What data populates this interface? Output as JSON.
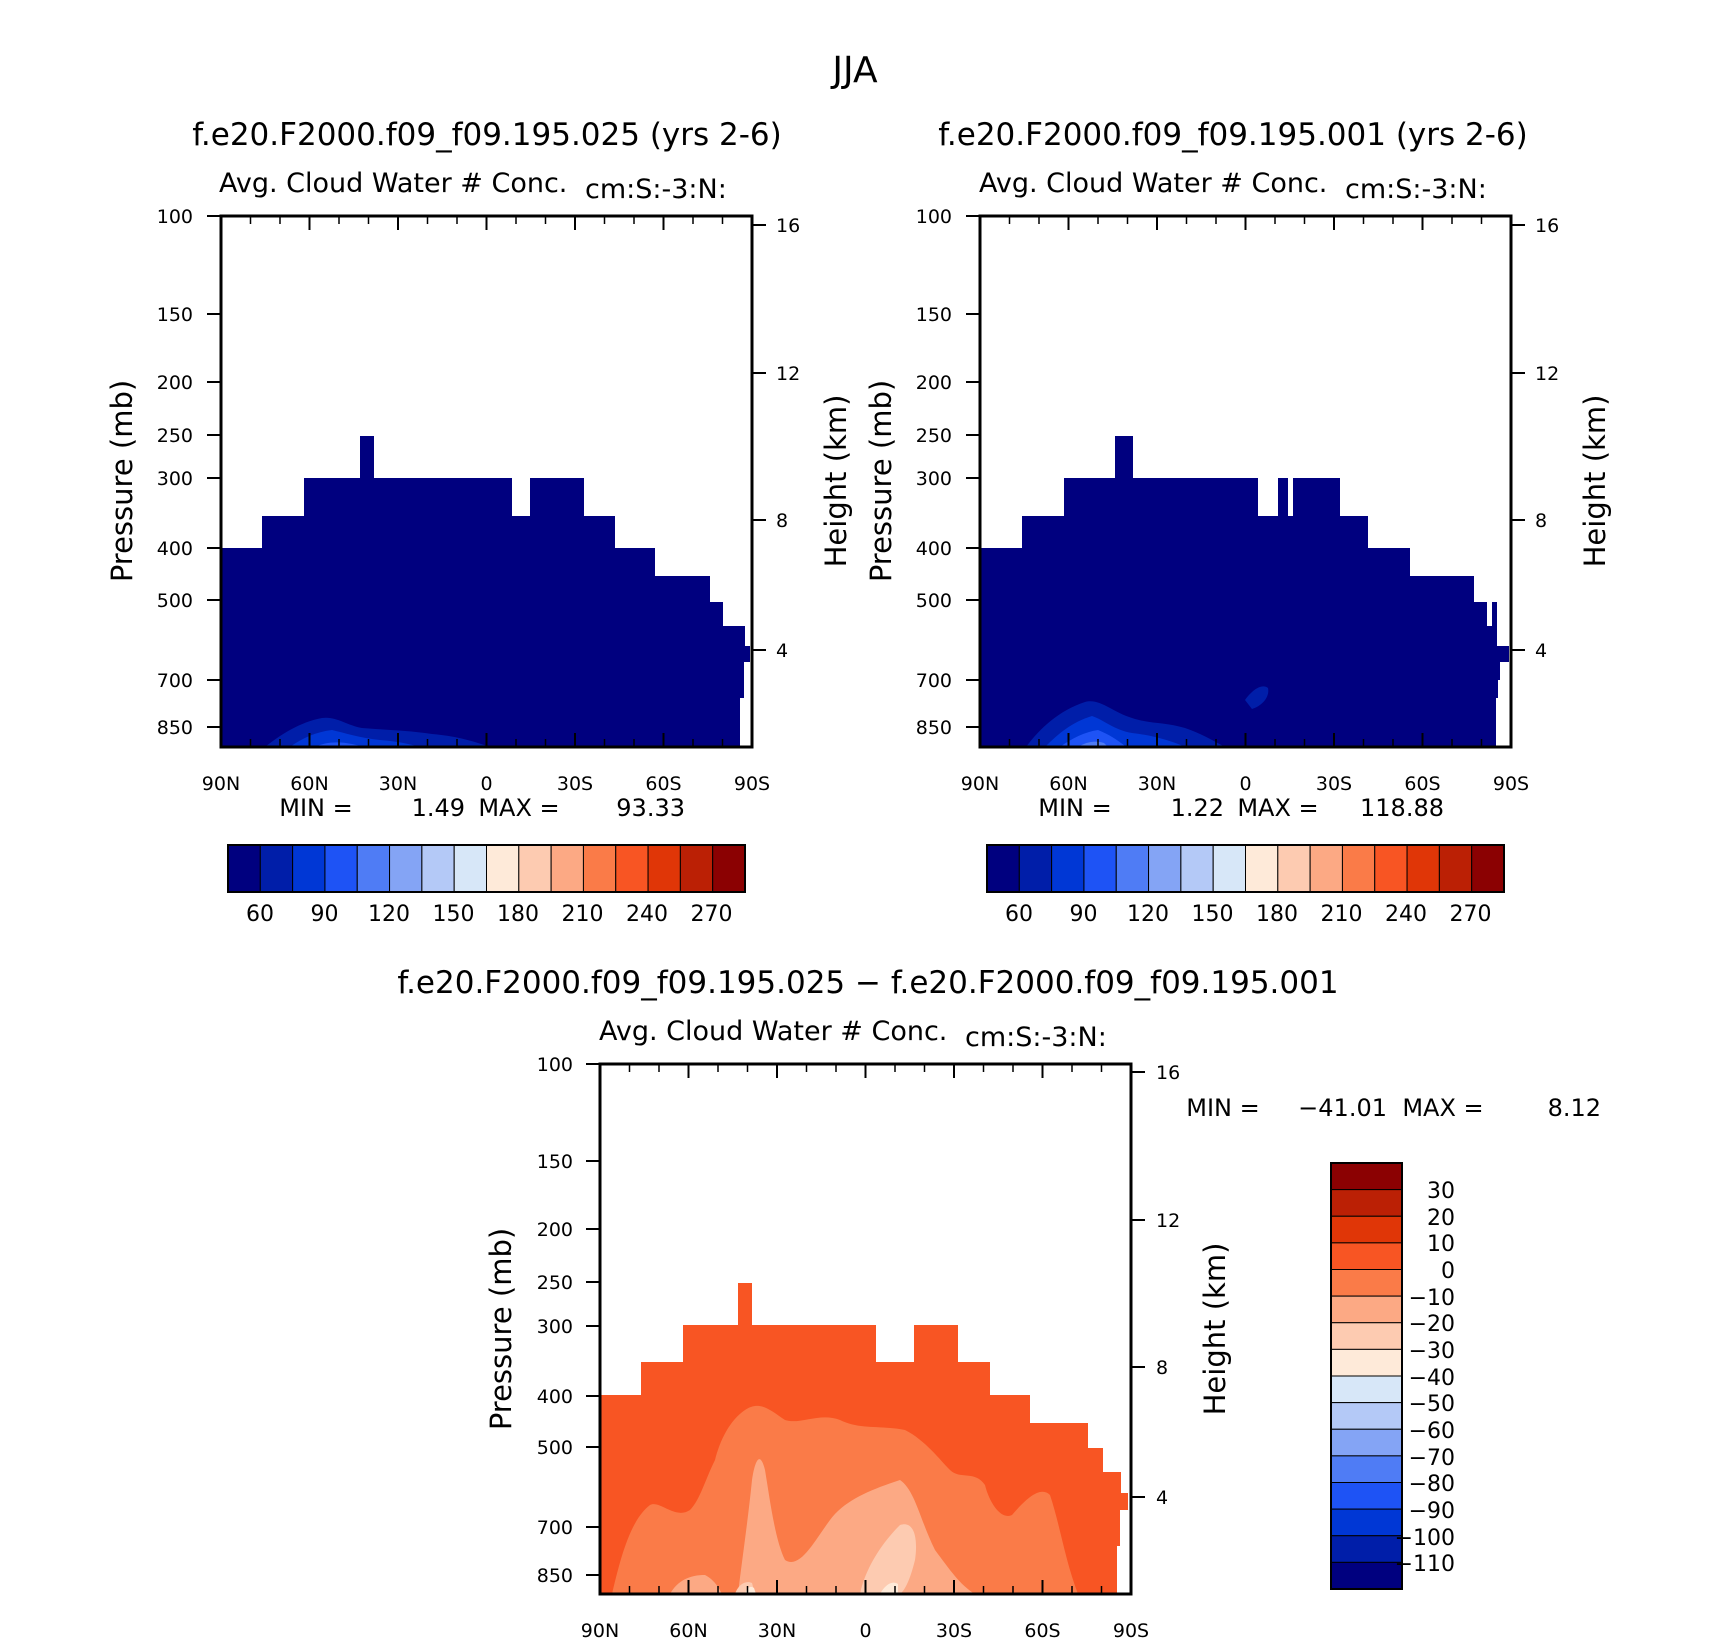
{
  "figure_title": "JJA",
  "colors": {
    "ramp": [
      "#00007f",
      "#001ea9",
      "#0037d5",
      "#1e53f5",
      "#4f7cf5",
      "#84a4f5",
      "#b4c9f7",
      "#d7e7f8",
      "#feead9",
      "#fdcbb1",
      "#fca984",
      "#fa7b48",
      "#f85523",
      "#e03607",
      "#bb2005",
      "#8b0102"
    ]
  },
  "chart_data": [
    {
      "type": "heatmap",
      "title": "f.e20.F2000.f09_f09.195.025 (yrs 2-6)",
      "subtitle": "Avg. Cloud Water # Conc.",
      "units": "cm:S:-3:N:",
      "ylabel": "Pressure (mb)",
      "ylabel_right": "Height (km)",
      "x_ticks": [
        "90N",
        "60N",
        "30N",
        "0",
        "30S",
        "60S",
        "90S"
      ],
      "y_ticks": [
        "100",
        "150",
        "200",
        "250",
        "300",
        "400",
        "500",
        "700",
        "850"
      ],
      "y2_ticks": [
        "16",
        "12",
        "8",
        "4"
      ],
      "stats": {
        "min_label": "MIN =",
        "min": "1.49",
        "max_label": "MAX =",
        "max": "93.33"
      },
      "colorbar_labels": [
        "60",
        "90",
        "120",
        "150",
        "180",
        "210",
        "240",
        "270"
      ]
    },
    {
      "type": "heatmap",
      "title": "f.e20.F2000.f09_f09.195.001 (yrs 2-6)",
      "subtitle": "Avg. Cloud Water # Conc.",
      "units": "cm:S:-3:N:",
      "ylabel": "Pressure (mb)",
      "ylabel_right": "Height (km)",
      "x_ticks": [
        "90N",
        "60N",
        "30N",
        "0",
        "30S",
        "60S",
        "90S"
      ],
      "y_ticks": [
        "100",
        "150",
        "200",
        "250",
        "300",
        "400",
        "500",
        "700",
        "850"
      ],
      "y2_ticks": [
        "16",
        "12",
        "8",
        "4"
      ],
      "stats": {
        "min_label": "MIN =",
        "min": "1.22",
        "max_label": "MAX =",
        "max": "118.88"
      },
      "colorbar_labels": [
        "60",
        "90",
        "120",
        "150",
        "180",
        "210",
        "240",
        "270"
      ]
    },
    {
      "type": "heatmap",
      "title": "f.e20.F2000.f09_f09.195.025 − f.e20.F2000.f09_f09.195.001",
      "subtitle": "Avg. Cloud Water # Conc.",
      "units": "cm:S:-3:N:",
      "ylabel": "Pressure (mb)",
      "ylabel_right": "Height (km)",
      "x_ticks": [
        "90N",
        "60N",
        "30N",
        "0",
        "30S",
        "60S",
        "90S"
      ],
      "y_ticks": [
        "100",
        "150",
        "200",
        "250",
        "300",
        "400",
        "500",
        "700",
        "850"
      ],
      "y2_ticks": [
        "16",
        "12",
        "8",
        "4"
      ],
      "stats": {
        "min_label": "MIN =",
        "min": "−41.01",
        "max_label": "MAX =",
        "max": "8.12"
      },
      "colorbar_labels": [
        "30",
        "20",
        "10",
        "0",
        "−10",
        "−20",
        "−30",
        "−40",
        "−50",
        "−60",
        "−70",
        "−80",
        "−90",
        "−100",
        "−110"
      ]
    }
  ]
}
